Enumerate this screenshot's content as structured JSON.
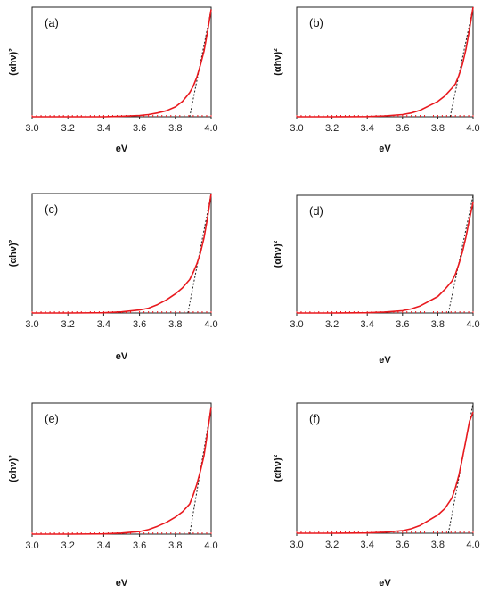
{
  "chart_data": [
    {
      "type": "line",
      "panel_label": "(a)",
      "xlabel": "eV",
      "ylabel": "(αhν)²",
      "xlim": [
        3.0,
        4.0
      ],
      "ylim": [
        0,
        1.0
      ],
      "x_ticks": [
        "3.0",
        "3.2",
        "3.4",
        "3.6",
        "3.8",
        "4.0"
      ],
      "x": [
        3.0,
        3.2,
        3.4,
        3.5,
        3.6,
        3.65,
        3.7,
        3.75,
        3.8,
        3.84,
        3.88,
        3.9,
        3.92,
        3.94,
        3.96,
        3.98,
        4.0
      ],
      "series": [
        {
          "values": [
            0.0,
            0.0,
            0.0,
            0.005,
            0.012,
            0.02,
            0.035,
            0.055,
            0.09,
            0.14,
            0.22,
            0.28,
            0.36,
            0.47,
            0.6,
            0.78,
            0.98
          ]
        }
      ],
      "tangent": {
        "x": [
          3.88,
          4.0
        ],
        "y": [
          0.0,
          0.98
        ]
      },
      "line_color": "#e8191e",
      "tangent_color": "#222222"
    },
    {
      "type": "line",
      "panel_label": "(b)",
      "xlabel": "eV",
      "ylabel": "(αhν)²",
      "xlim": [
        3.0,
        4.0
      ],
      "ylim": [
        0,
        1.0
      ],
      "x_ticks": [
        "3.0",
        "3.2",
        "3.4",
        "3.6",
        "3.8",
        "4.0"
      ],
      "x": [
        3.0,
        3.2,
        3.4,
        3.5,
        3.6,
        3.65,
        3.7,
        3.75,
        3.8,
        3.84,
        3.88,
        3.9,
        3.92,
        3.94,
        3.96,
        3.98,
        4.0
      ],
      "series": [
        {
          "values": [
            0.0,
            0.0,
            0.002,
            0.008,
            0.02,
            0.035,
            0.06,
            0.1,
            0.14,
            0.19,
            0.26,
            0.3,
            0.38,
            0.48,
            0.62,
            0.8,
            1.0
          ]
        }
      ],
      "tangent": {
        "x": [
          3.87,
          4.0
        ],
        "y": [
          0.0,
          1.0
        ]
      },
      "line_color": "#e8191e",
      "tangent_color": "#222222"
    },
    {
      "type": "line",
      "panel_label": "(c)",
      "xlabel": "eV",
      "ylabel": "(αhν)²",
      "xlim": [
        3.0,
        4.0
      ],
      "ylim": [
        0,
        1.0
      ],
      "x_ticks": [
        "3.0",
        "3.2",
        "3.4",
        "3.6",
        "3.8",
        "4.0"
      ],
      "x": [
        3.0,
        3.2,
        3.4,
        3.5,
        3.6,
        3.65,
        3.7,
        3.75,
        3.8,
        3.84,
        3.88,
        3.9,
        3.92,
        3.94,
        3.96,
        3.98,
        4.0
      ],
      "series": [
        {
          "values": [
            0.0,
            0.0,
            0.002,
            0.01,
            0.025,
            0.04,
            0.07,
            0.11,
            0.16,
            0.21,
            0.28,
            0.34,
            0.41,
            0.5,
            0.63,
            0.8,
            1.0
          ]
        }
      ],
      "tangent": {
        "x": [
          3.87,
          4.0
        ],
        "y": [
          0.0,
          1.0
        ]
      },
      "line_color": "#e8191e",
      "tangent_color": "#222222"
    },
    {
      "type": "line",
      "panel_label": "(d)",
      "xlabel": "eV",
      "ylabel": "(αhν)²",
      "xlim": [
        3.0,
        4.0
      ],
      "ylim": [
        0,
        1.0
      ],
      "x_ticks": [
        "3.0",
        "3.2",
        "3.4",
        "3.6",
        "3.8",
        "4.0"
      ],
      "x": [
        3.0,
        3.2,
        3.4,
        3.5,
        3.6,
        3.65,
        3.7,
        3.75,
        3.8,
        3.84,
        3.88,
        3.9,
        3.92,
        3.94,
        3.96,
        3.98,
        4.0
      ],
      "series": [
        {
          "values": [
            0.0,
            0.0,
            0.002,
            0.008,
            0.02,
            0.035,
            0.06,
            0.1,
            0.14,
            0.2,
            0.27,
            0.33,
            0.42,
            0.52,
            0.65,
            0.8,
            0.94
          ]
        }
      ],
      "tangent": {
        "x": [
          3.86,
          4.0
        ],
        "y": [
          0.0,
          1.0
        ]
      },
      "line_color": "#e8191e",
      "tangent_color": "#222222"
    },
    {
      "type": "line",
      "panel_label": "(e)",
      "xlabel": "eV",
      "ylabel": "(αhν)²",
      "xlim": [
        3.0,
        4.0
      ],
      "ylim": [
        0,
        1.0
      ],
      "x_ticks": [
        "3.0",
        "3.2",
        "3.4",
        "3.6",
        "3.8",
        "4.0"
      ],
      "x": [
        3.0,
        3.2,
        3.4,
        3.5,
        3.6,
        3.65,
        3.7,
        3.75,
        3.8,
        3.84,
        3.88,
        3.9,
        3.92,
        3.94,
        3.96,
        3.98,
        4.0
      ],
      "series": [
        {
          "values": [
            0.0,
            0.0,
            0.002,
            0.008,
            0.02,
            0.035,
            0.06,
            0.09,
            0.13,
            0.17,
            0.23,
            0.3,
            0.38,
            0.48,
            0.6,
            0.78,
            0.97
          ]
        }
      ],
      "tangent": {
        "x": [
          3.88,
          4.0
        ],
        "y": [
          0.0,
          0.97
        ]
      },
      "line_color": "#e8191e",
      "tangent_color": "#222222"
    },
    {
      "type": "line",
      "panel_label": "(f)",
      "xlabel": "eV",
      "ylabel": "(αhν)²",
      "xlim": [
        3.0,
        4.0
      ],
      "ylim": [
        0,
        1.0
      ],
      "x_ticks": [
        "3.0",
        "3.2",
        "3.4",
        "3.6",
        "3.8",
        "4.0"
      ],
      "x": [
        3.0,
        3.2,
        3.4,
        3.5,
        3.6,
        3.65,
        3.7,
        3.75,
        3.8,
        3.84,
        3.88,
        3.9,
        3.92,
        3.94,
        3.96,
        3.98,
        4.0
      ],
      "series": [
        {
          "values": [
            0.0,
            0.0,
            0.002,
            0.008,
            0.02,
            0.035,
            0.06,
            0.1,
            0.14,
            0.19,
            0.27,
            0.35,
            0.45,
            0.58,
            0.72,
            0.86,
            0.93
          ]
        }
      ],
      "tangent": {
        "x": [
          3.86,
          4.0
        ],
        "y": [
          0.0,
          1.0
        ]
      },
      "line_color": "#e8191e",
      "tangent_color": "#222222"
    }
  ]
}
